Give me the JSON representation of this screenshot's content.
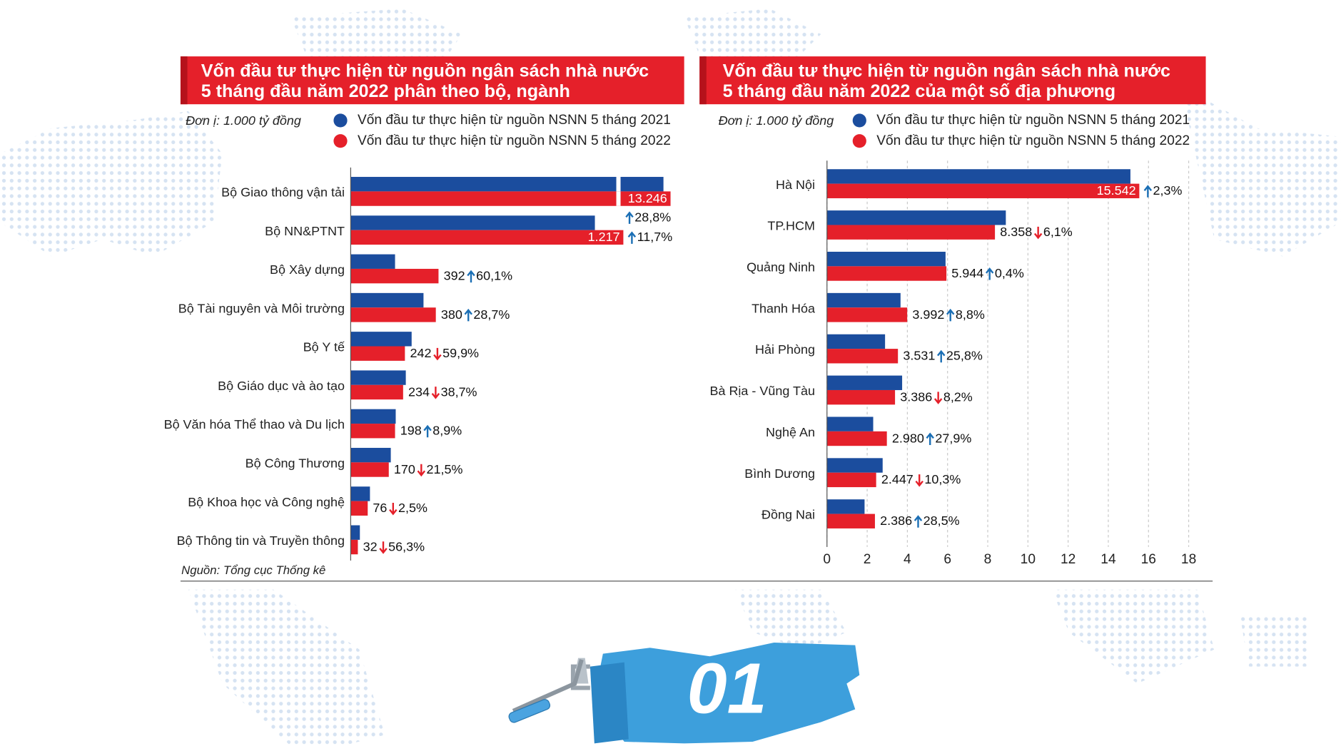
{
  "chart_data": [
    {
      "type": "bar",
      "orientation": "horizontal",
      "title_lines": [
        "Vốn đầu tư thực hiện từ nguồn ngân sách nhà nước",
        "5 tháng đầu năm 2022 phân theo bộ, ngành"
      ],
      "unit": "Đơn ị: 1.000 tỷ đồng",
      "categories": [
        "Bộ Giao thông vận tải",
        "Bộ NN&PTNT",
        "Bộ Xây dựng",
        "Bộ Tài nguyên và Môi trường",
        "Bộ Y tế",
        "Bộ Giáo dục và ào tạo",
        "Bộ Văn hóa Thể thao và Du lịch",
        "Bộ Công Thương",
        "Bộ Khoa học và Công nghệ",
        "Bộ Thông tin và Truyền thông"
      ],
      "series": [
        {
          "name": "Vốn đầu tư thực hiện từ nguồn NSNN 5 tháng 2021",
          "color": "#1b4d9e",
          "values": [
            10284,
            1090,
            198,
            325,
            272,
            246,
            201,
            179,
            86,
            41
          ]
        },
        {
          "name": "Vốn đầu tư thực hiện từ nguồn NSNN 5 tháng 2022",
          "color": "#e5202a",
          "values": [
            13246,
            1217,
            392,
            380,
            242,
            234,
            198,
            170,
            76,
            32
          ],
          "value_labels": [
            "13.246",
            "1.217",
            "392",
            "380",
            "242",
            "234",
            "198",
            "170",
            "76",
            "32"
          ]
        }
      ],
      "changes": [
        "28,8%",
        "11,7%",
        "60,1%",
        "28,7%",
        "59,9%",
        "38,7%",
        "8,9%",
        "21,5%",
        "2,5%",
        "56,3%"
      ],
      "change_directions": [
        "up",
        "up",
        "up",
        "up",
        "down",
        "down",
        "up",
        "down",
        "down",
        "down"
      ],
      "broken_axis": true
    },
    {
      "type": "bar",
      "orientation": "horizontal",
      "title_lines": [
        "Vốn đầu tư thực hiện từ nguồn ngân sách nhà nước",
        "5 tháng đầu năm 2022 của một số địa phương"
      ],
      "unit": "Đơn ị: 1.000 tỷ đồng",
      "categories": [
        "Hà Nội",
        "TP.HCM",
        "Quảng Ninh",
        "Thanh Hóa",
        "Hải Phòng",
        "Bà Rịa - Vũng Tàu",
        "Nghệ An",
        "Bình Dương",
        "Đồng Nai"
      ],
      "series": [
        {
          "name": "Vốn đầu tư thực hiện từ nguồn NSNN 5 tháng 2021",
          "color": "#1b4d9e",
          "values": [
            15.1,
            8.9,
            5.9,
            3.66,
            2.89,
            3.74,
            2.3,
            2.77,
            1.87
          ]
        },
        {
          "name": "Vốn đầu tư thực hiện từ nguồn NSNN 5 tháng 2022",
          "color": "#e5202a",
          "values": [
            15.542,
            8.358,
            5.944,
            3.992,
            3.531,
            3.386,
            2.98,
            2.447,
            2.386
          ],
          "value_labels": [
            "15.542",
            "8.358",
            "5.944",
            "3.992",
            "3.531",
            "3.386",
            "2.980",
            "2.447",
            "2.386"
          ]
        }
      ],
      "changes": [
        "2,3%",
        "6,1%",
        "0,4%",
        "8,8%",
        "25,8%",
        "8,2%",
        "27,9%",
        "10,3%",
        "28,5%"
      ],
      "change_directions": [
        "up",
        "down",
        "up",
        "up",
        "up",
        "down",
        "up",
        "down",
        "up"
      ],
      "xlim": [
        0,
        18
      ],
      "xticks": [
        0,
        2,
        4,
        6,
        8,
        10,
        12,
        14,
        16,
        18
      ],
      "grid": true
    }
  ],
  "source": "Nguồn: Tổng cục Thống kê",
  "badge": "01"
}
